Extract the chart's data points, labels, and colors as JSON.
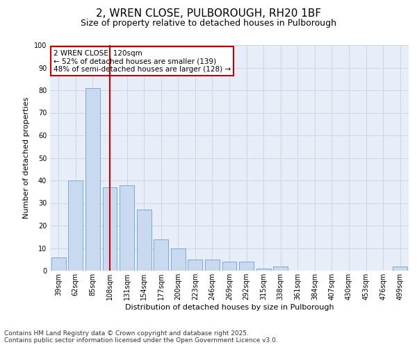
{
  "title_line1": "2, WREN CLOSE, PULBOROUGH, RH20 1BF",
  "title_line2": "Size of property relative to detached houses in Pulborough",
  "xlabel": "Distribution of detached houses by size in Pulborough",
  "ylabel": "Number of detached properties",
  "categories": [
    "39sqm",
    "62sqm",
    "85sqm",
    "108sqm",
    "131sqm",
    "154sqm",
    "177sqm",
    "200sqm",
    "223sqm",
    "246sqm",
    "269sqm",
    "292sqm",
    "315sqm",
    "338sqm",
    "361sqm",
    "384sqm",
    "407sqm",
    "430sqm",
    "453sqm",
    "476sqm",
    "499sqm"
  ],
  "values": [
    6,
    40,
    81,
    37,
    38,
    27,
    14,
    10,
    5,
    5,
    4,
    4,
    1,
    2,
    0,
    0,
    0,
    0,
    0,
    0,
    2
  ],
  "bar_color": "#c9d9f0",
  "bar_edgecolor": "#7aaad4",
  "vline_x": 3.0,
  "vline_color": "#cc0000",
  "annotation_text": "2 WREN CLOSE: 120sqm\n← 52% of detached houses are smaller (139)\n48% of semi-detached houses are larger (128) →",
  "annotation_box_color": "#ffffff",
  "annotation_box_edgecolor": "#cc0000",
  "ylim": [
    0,
    100
  ],
  "yticks": [
    0,
    10,
    20,
    30,
    40,
    50,
    60,
    70,
    80,
    90,
    100
  ],
  "grid_color": "#ccd5e8",
  "background_color": "#e8eef8",
  "footer_text": "Contains HM Land Registry data © Crown copyright and database right 2025.\nContains public sector information licensed under the Open Government Licence v3.0.",
  "title_fontsize": 11,
  "subtitle_fontsize": 9,
  "axis_label_fontsize": 8,
  "tick_fontsize": 7,
  "annotation_fontsize": 7.5,
  "footer_fontsize": 6.5
}
